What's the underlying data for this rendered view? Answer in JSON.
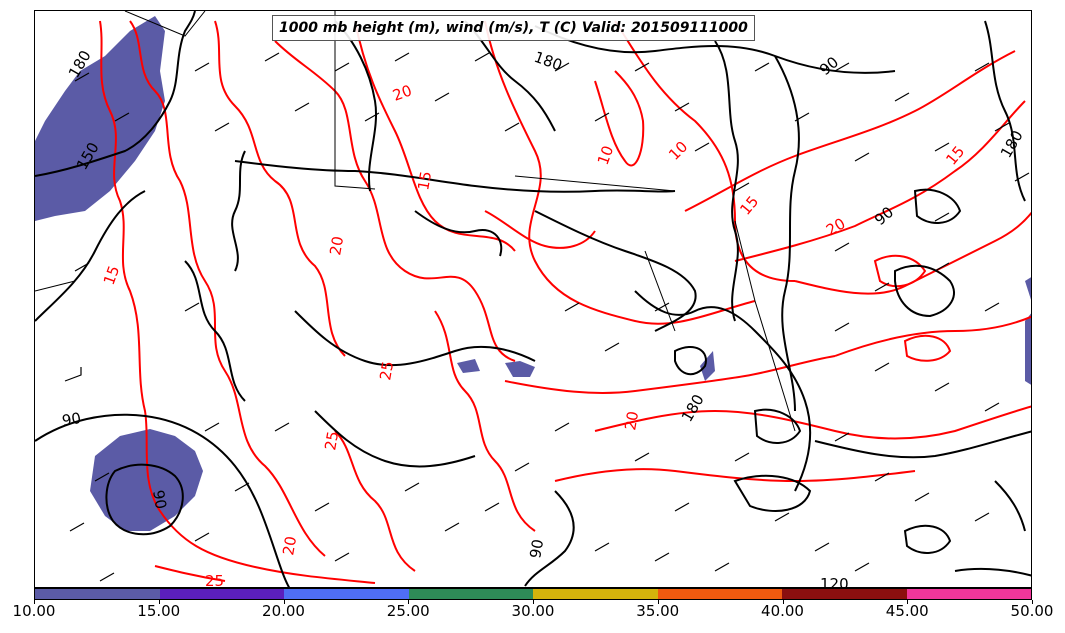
{
  "title": "1000 mb height (m), wind (m/s), T (C) Valid: 201509111000",
  "colors": {
    "height_contour": "#000000",
    "temperature_contour": "#ff0000",
    "wind_barb": "#000000"
  },
  "height_contour_labels": [
    "180",
    "180",
    "150",
    "180",
    "90",
    "90",
    "90",
    "120",
    "90",
    "90",
    "180"
  ],
  "temperature_contour_labels": [
    "15",
    "15",
    "20",
    "20",
    "10",
    "10",
    "15",
    "15",
    "20",
    "25",
    "20",
    "25",
    "25",
    "20"
  ],
  "colorbar": {
    "colors": [
      "#5b5ba6",
      "#5b1fbd",
      "#4f6ef5",
      "#2e8b57",
      "#d4b30c",
      "#f05a0f",
      "#8b0f0f",
      "#f0369b"
    ],
    "tick_labels": [
      "10.00",
      "15.00",
      "20.00",
      "25.00",
      "30.00",
      "35.00",
      "40.00",
      "45.00",
      "50.00"
    ]
  }
}
